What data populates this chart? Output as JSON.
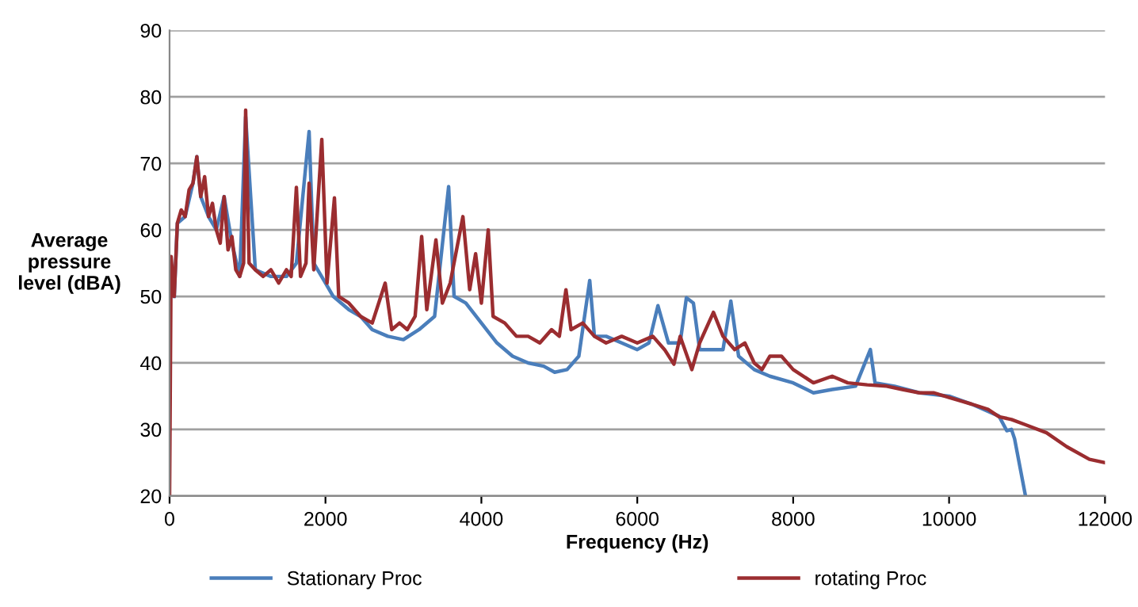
{
  "chart_data": {
    "type": "line",
    "xlabel": "Frequency (Hz)",
    "ylabel": "Average\npressure\nlevel (dBA)",
    "xlim": [
      0,
      12000
    ],
    "xticks": [
      0,
      2000,
      4000,
      6000,
      8000,
      10000,
      12000
    ],
    "ylim": [
      20,
      90
    ],
    "yticks": [
      20,
      30,
      40,
      50,
      60,
      70,
      80,
      90
    ],
    "grid": "y",
    "legend": "bottom",
    "series": [
      {
        "name": "Stationary Proc",
        "color": "#4a7ebb",
        "x": [
          60,
          100,
          200,
          300,
          350,
          400,
          500,
          600,
          700,
          800,
          900,
          976,
          1100,
          1300,
          1500,
          1627,
          1790,
          1850,
          2000,
          2100,
          2300,
          2450,
          2600,
          2800,
          3000,
          3200,
          3400,
          3580,
          3650,
          3800,
          4000,
          4200,
          4400,
          4600,
          4800,
          4940,
          5100,
          5250,
          5390,
          5450,
          5600,
          5800,
          6000,
          6150,
          6265,
          6400,
          6550,
          6630,
          6720,
          6800,
          7000,
          7100,
          7200,
          7300,
          7500,
          7700,
          8000,
          8260,
          8500,
          8800,
          8990,
          9050,
          9300,
          9620,
          10000,
          10290,
          10640,
          10740,
          10800,
          10840,
          10980
        ],
        "values": [
          50,
          61,
          62,
          67,
          71,
          65,
          62,
          60,
          65,
          58,
          53,
          77,
          54,
          53,
          53,
          55,
          74.8,
          55,
          52,
          50,
          48,
          47,
          45,
          44,
          43.5,
          45,
          47,
          66.5,
          50,
          49,
          46,
          43,
          41,
          40,
          39.5,
          38.6,
          39,
          41,
          52.4,
          44,
          44,
          43,
          42,
          43,
          48.6,
          43,
          43,
          49.8,
          49,
          42,
          42,
          42,
          49.3,
          41,
          39,
          38,
          37,
          35.5,
          36,
          36.5,
          42,
          37,
          36.5,
          35.5,
          35,
          33.8,
          32,
          29.8,
          30,
          28.6,
          20
        ]
      },
      {
        "name": "rotating Proc",
        "color": "#9b2d30",
        "x": [
          0,
          20,
          60,
          100,
          150,
          200,
          250,
          300,
          350,
          400,
          450,
          500,
          550,
          600,
          650,
          700,
          750,
          800,
          850,
          900,
          950,
          976,
          1020,
          1100,
          1200,
          1300,
          1400,
          1500,
          1560,
          1627,
          1680,
          1750,
          1790,
          1850,
          1953,
          2020,
          2115,
          2170,
          2300,
          2450,
          2600,
          2766,
          2850,
          2950,
          3050,
          3150,
          3234,
          3300,
          3417,
          3500,
          3600,
          3763,
          3850,
          3926,
          4000,
          4088,
          4150,
          4300,
          4450,
          4600,
          4750,
          4900,
          5000,
          5085,
          5150,
          5300,
          5450,
          5600,
          5800,
          6000,
          6200,
          6350,
          6470,
          6550,
          6700,
          6800,
          6977,
          7100,
          7250,
          7380,
          7500,
          7600,
          7700,
          7850,
          8000,
          8260,
          8500,
          8700,
          8950,
          9200,
          9400,
          9620,
          9800,
          10000,
          10290,
          10500,
          10640,
          10800,
          10980,
          11250,
          11510,
          11800,
          12000
        ],
        "values": [
          20,
          56,
          50,
          61,
          63,
          62,
          66,
          67,
          71,
          65,
          68,
          62,
          64,
          60,
          58,
          65,
          57,
          59,
          54,
          53,
          55,
          78,
          55,
          54,
          53,
          54,
          52,
          54,
          53,
          66.4,
          53,
          55,
          67,
          54,
          73.6,
          52,
          64.8,
          50,
          49,
          47,
          46,
          52,
          45,
          46,
          45,
          47,
          59,
          48,
          58.5,
          49,
          52,
          62,
          51,
          56.4,
          49,
          60,
          47,
          46,
          44,
          44,
          43,
          45,
          44,
          51,
          45,
          46,
          44,
          43,
          44,
          43,
          44,
          42,
          39.8,
          44,
          39,
          43,
          47.6,
          44,
          42,
          43,
          40,
          39,
          41,
          41,
          39,
          37,
          38,
          37,
          36.7,
          36.5,
          36,
          35.5,
          35.5,
          34.8,
          33.8,
          33,
          31.9,
          31.5,
          30.7,
          29.5,
          27.4,
          25.5,
          25
        ]
      }
    ]
  }
}
